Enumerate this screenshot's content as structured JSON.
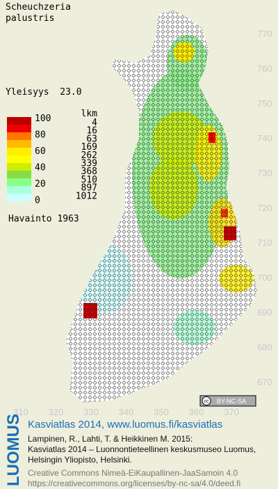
{
  "title": [
    "Scheuchzeria",
    "palustris"
  ],
  "frequency": "Yleisyys  23.0",
  "legend": {
    "percent_labels": [
      100,
      80,
      60,
      40,
      20,
      0
    ],
    "count_header": "lkm",
    "counts": [
      4,
      16,
      63,
      169,
      262,
      339,
      368,
      510,
      897,
      1012
    ]
  },
  "observations": "Havainto 1963",
  "grid": {
    "y_labels": [
      770,
      760,
      750,
      740,
      730,
      720,
      710,
      700,
      690,
      680,
      670
    ],
    "x_labels": [
      310,
      320,
      330,
      340,
      350,
      360,
      370
    ]
  },
  "license_badge": {
    "cc": "cc",
    "terms": "BY-NC-SA"
  },
  "footer": {
    "logo": "LUOMUS",
    "headline": "Kasviatlas 2014, www.luomus.fi/kasviatlas",
    "citation": [
      "Lampinen, R., Lahti, T. & Heikkinen M. 2015:",
      "Kasviatlas 2014 – Luonnontieteellinen keskusmuseo Luomus,",
      "Helsingin Yliopisto, Helsinki."
    ],
    "license": [
      "Creative Commons Nimeä-EiKaupallinen-JaaSamoin 4.0",
      "https://creativecommons.org/licenses/by-nc-sa/4.0/deed.fi"
    ]
  }
}
